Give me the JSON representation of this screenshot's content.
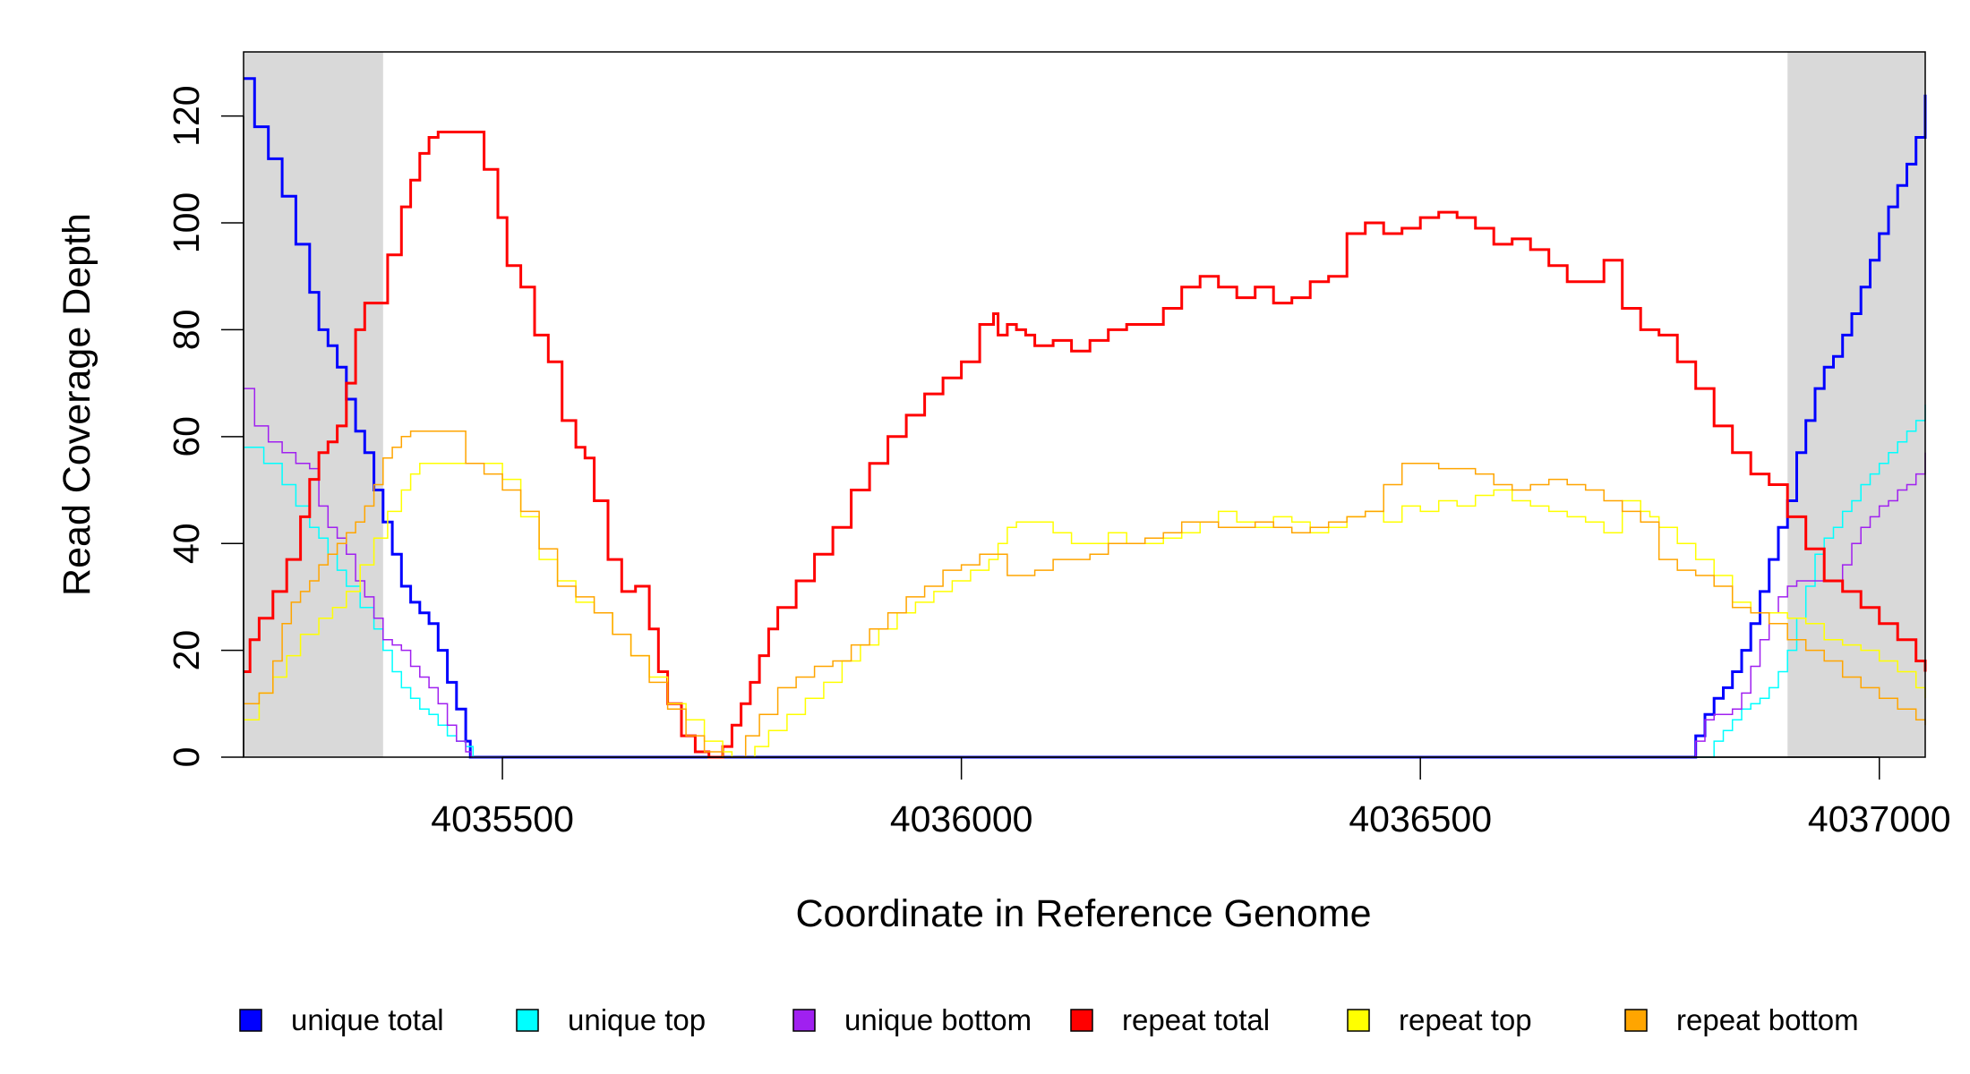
{
  "chart_data": {
    "type": "line",
    "title": "",
    "xlabel": "Coordinate in Reference Genome",
    "ylabel": "Read Coverage Depth",
    "xlim": [
      4035218,
      4037050
    ],
    "ylim": [
      0,
      132
    ],
    "x_ticks": [
      4035500,
      4036000,
      4036500,
      4037000
    ],
    "x_tick_labels": [
      "4035500",
      "4036000",
      "4036500",
      "4037000"
    ],
    "y_ticks": [
      0,
      20,
      40,
      60,
      80,
      100,
      120
    ],
    "y_tick_labels": [
      "0",
      "20",
      "40",
      "60",
      "80",
      "100",
      "120"
    ],
    "grid": false,
    "legend_position": "bottom",
    "shaded_regions": [
      [
        4035218,
        4035370
      ],
      [
        4036900,
        4037050
      ]
    ],
    "shade_color": "#d9d9d9",
    "series": [
      {
        "name": "unique total",
        "color": "#0000ff",
        "width": 3,
        "x": [
          4035218,
          4035230,
          4035245,
          4035260,
          4035275,
          4035290,
          4035300,
          4035310,
          4035320,
          4035330,
          4035340,
          4035350,
          4035360,
          4035370,
          4035380,
          4035390,
          4035400,
          4035410,
          4035420,
          4035430,
          4035440,
          4035450,
          4035460,
          4035465,
          4036795,
          4036800,
          4036810,
          4036820,
          4036830,
          4036840,
          4036850,
          4036860,
          4036870,
          4036880,
          4036890,
          4036900,
          4036910,
          4036920,
          4036930,
          4036940,
          4036950,
          4036960,
          4036970,
          4036980,
          4036990,
          4037000,
          4037010,
          4037020,
          4037030,
          4037040,
          4037050
        ],
        "y": [
          127,
          118,
          112,
          105,
          96,
          87,
          80,
          77,
          73,
          67,
          61,
          57,
          50,
          44,
          38,
          32,
          29,
          27,
          25,
          20,
          14,
          9,
          3,
          0,
          0,
          4,
          8,
          11,
          13,
          16,
          20,
          25,
          31,
          37,
          43,
          48,
          57,
          63,
          69,
          73,
          75,
          79,
          83,
          88,
          93,
          98,
          103,
          107,
          111,
          116,
          124
        ]
      },
      {
        "name": "unique top",
        "color": "#00ffff",
        "width": 1.5,
        "x": [
          4035218,
          4035240,
          4035260,
          4035275,
          4035290,
          4035300,
          4035310,
          4035320,
          4035330,
          4035345,
          4035360,
          4035370,
          4035380,
          4035390,
          4035400,
          4035410,
          4035420,
          4035430,
          4035440,
          4035450,
          4035460,
          4035468,
          4036812,
          4036820,
          4036830,
          4036840,
          4036850,
          4036860,
          4036870,
          4036880,
          4036890,
          4036900,
          4036910,
          4036920,
          4036930,
          4036940,
          4036950,
          4036960,
          4036970,
          4036980,
          4036990,
          4037000,
          4037010,
          4037020,
          4037030,
          4037040,
          4037050
        ],
        "y": [
          58,
          55,
          51,
          47,
          43,
          41,
          38,
          35,
          32,
          28,
          24,
          20,
          16,
          13,
          11,
          9,
          8,
          6,
          4,
          3,
          2,
          0,
          0,
          3,
          5,
          7,
          9,
          10,
          11,
          13,
          16,
          20,
          26,
          32,
          38,
          41,
          43,
          46,
          48,
          51,
          53,
          55,
          57,
          59,
          61,
          63,
          66
        ]
      },
      {
        "name": "unique bottom",
        "color": "#a020f0",
        "width": 1.5,
        "x": [
          4035218,
          4035230,
          4035245,
          4035260,
          4035275,
          4035290,
          4035300,
          4035310,
          4035320,
          4035330,
          4035340,
          4035350,
          4035360,
          4035370,
          4035380,
          4035390,
          4035400,
          4035410,
          4035420,
          4035430,
          4035440,
          4035450,
          4035460,
          4035466,
          4036795,
          4036800,
          4036810,
          4036820,
          4036830,
          4036840,
          4036850,
          4036860,
          4036870,
          4036880,
          4036890,
          4036900,
          4036910,
          4036920,
          4036930,
          4036940,
          4036950,
          4036960,
          4036970,
          4036980,
          4036990,
          4037000,
          4037010,
          4037020,
          4037030,
          4037040,
          4037050
        ],
        "y": [
          69,
          62,
          59,
          57,
          55,
          54,
          47,
          43,
          41,
          38,
          33,
          30,
          26,
          22,
          21,
          20,
          17,
          15,
          13,
          10,
          6,
          3,
          1,
          0,
          0,
          3,
          7,
          8,
          8,
          9,
          12,
          17,
          22,
          27,
          30,
          32,
          33,
          33,
          33,
          33,
          33,
          36,
          40,
          43,
          45,
          47,
          48,
          50,
          51,
          53,
          57
        ]
      },
      {
        "name": "repeat total",
        "color": "#ff0000",
        "width": 3,
        "x": [
          4035218,
          4035225,
          4035235,
          4035250,
          4035265,
          4035280,
          4035290,
          4035300,
          4035310,
          4035320,
          4035330,
          4035340,
          4035350,
          4035360,
          4035375,
          4035390,
          4035400,
          4035410,
          4035420,
          4035430,
          4035440,
          4035450,
          4035465,
          4035480,
          4035495,
          4035505,
          4035520,
          4035535,
          4035550,
          4035565,
          4035580,
          4035590,
          4035600,
          4035615,
          4035630,
          4035645,
          4035660,
          4035670,
          4035680,
          4035695,
          4035710,
          4035725,
          4035740,
          4035750,
          4035760,
          4035770,
          4035780,
          4035790,
          4035800,
          4035820,
          4035840,
          4035860,
          4035880,
          4035900,
          4035920,
          4035940,
          4035960,
          4035980,
          4036000,
          4036020,
          4036035,
          4036040,
          4036050,
          4036060,
          4036070,
          4036080,
          4036100,
          4036120,
          4036140,
          4036160,
          4036180,
          4036200,
          4036220,
          4036240,
          4036260,
          4036280,
          4036300,
          4036320,
          4036340,
          4036360,
          4036380,
          4036400,
          4036420,
          4036440,
          4036460,
          4036480,
          4036500,
          4036520,
          4036540,
          4036560,
          4036580,
          4036600,
          4036620,
          4036640,
          4036660,
          4036680,
          4036700,
          4036720,
          4036740,
          4036760,
          4036780,
          4036800,
          4036820,
          4036840,
          4036860,
          4036880,
          4036900,
          4036920,
          4036940,
          4036960,
          4036980,
          4037000,
          4037020,
          4037040,
          4037050
        ],
        "y": [
          16,
          22,
          26,
          31,
          37,
          45,
          52,
          57,
          59,
          62,
          70,
          80,
          85,
          85,
          94,
          103,
          108,
          113,
          116,
          117,
          117,
          117,
          117,
          110,
          101,
          92,
          88,
          79,
          74,
          63,
          58,
          56,
          48,
          37,
          31,
          32,
          24,
          16,
          10,
          4,
          1,
          0,
          2,
          6,
          10,
          14,
          19,
          24,
          28,
          33,
          38,
          43,
          50,
          55,
          60,
          64,
          68,
          71,
          74,
          81,
          83,
          79,
          81,
          80,
          79,
          77,
          78,
          76,
          78,
          80,
          81,
          81,
          84,
          88,
          90,
          88,
          86,
          88,
          85,
          86,
          89,
          90,
          98,
          100,
          98,
          99,
          101,
          102,
          101,
          99,
          96,
          97,
          95,
          92,
          89,
          89,
          93,
          84,
          80,
          79,
          74,
          69,
          62,
          57,
          53,
          51,
          45,
          39,
          33,
          31,
          28,
          25,
          22,
          18,
          16
        ]
      },
      {
        "name": "repeat top",
        "color": "#ffff00",
        "width": 1.5,
        "x": [
          4035218,
          4035235,
          4035250,
          4035265,
          4035280,
          4035300,
          4035315,
          4035330,
          4035345,
          4035360,
          4035375,
          4035390,
          4035400,
          4035410,
          4035420,
          4035440,
          4035460,
          4035480,
          4035500,
          4035520,
          4035540,
          4035560,
          4035580,
          4035600,
          4035620,
          4035640,
          4035660,
          4035680,
          4035700,
          4035720,
          4035740,
          4035750,
          4035760,
          4035775,
          4035790,
          4035810,
          4035830,
          4035850,
          4035870,
          4035890,
          4035910,
          4035930,
          4035950,
          4035970,
          4035990,
          4036010,
          4036030,
          4036040,
          4036050,
          4036060,
          4036080,
          4036100,
          4036120,
          4036140,
          4036160,
          4036180,
          4036200,
          4036220,
          4036240,
          4036260,
          4036280,
          4036300,
          4036320,
          4036340,
          4036360,
          4036380,
          4036400,
          4036420,
          4036440,
          4036460,
          4036480,
          4036500,
          4036520,
          4036540,
          4036560,
          4036580,
          4036600,
          4036620,
          4036640,
          4036660,
          4036680,
          4036700,
          4036720,
          4036740,
          4036750,
          4036760,
          4036780,
          4036800,
          4036820,
          4036840,
          4036860,
          4036880,
          4036900,
          4036920,
          4036940,
          4036960,
          4036980,
          4037000,
          4037020,
          4037040,
          4037050
        ],
        "y": [
          7,
          12,
          15,
          19,
          23,
          26,
          28,
          31,
          36,
          41,
          46,
          50,
          53,
          55,
          55,
          55,
          55,
          55,
          52,
          45,
          37,
          33,
          29,
          27,
          23,
          19,
          15,
          10,
          7,
          3,
          1,
          0,
          0,
          2,
          5,
          8,
          11,
          14,
          18,
          21,
          24,
          27,
          29,
          31,
          33,
          35,
          37,
          40,
          43,
          44,
          44,
          42,
          40,
          40,
          42,
          40,
          40,
          41,
          42,
          44,
          46,
          44,
          43,
          45,
          44,
          42,
          43,
          45,
          46,
          44,
          47,
          46,
          48,
          47,
          49,
          50,
          48,
          47,
          46,
          45,
          44,
          42,
          48,
          46,
          45,
          43,
          40,
          37,
          34,
          29,
          27,
          27,
          26,
          25,
          22,
          21,
          20,
          18,
          16,
          13,
          11
        ]
      },
      {
        "name": "repeat bottom",
        "color": "#ffa500",
        "width": 1.5,
        "x": [
          4035218,
          4035235,
          4035250,
          4035260,
          4035270,
          4035280,
          4035290,
          4035300,
          4035310,
          4035320,
          4035330,
          4035340,
          4035350,
          4035360,
          4035370,
          4035380,
          4035390,
          4035400,
          4035410,
          4035420,
          4035440,
          4035460,
          4035480,
          4035500,
          4035520,
          4035540,
          4035560,
          4035580,
          4035600,
          4035620,
          4035640,
          4035660,
          4035680,
          4035700,
          4035720,
          4035740,
          4035750,
          4035765,
          4035780,
          4035800,
          4035820,
          4035840,
          4035860,
          4035880,
          4035900,
          4035920,
          4035940,
          4035960,
          4035980,
          4036000,
          4036020,
          4036040,
          4036050,
          4036060,
          4036080,
          4036100,
          4036120,
          4036140,
          4036160,
          4036180,
          4036200,
          4036220,
          4036240,
          4036260,
          4036280,
          4036300,
          4036320,
          4036340,
          4036360,
          4036380,
          4036400,
          4036420,
          4036440,
          4036460,
          4036480,
          4036500,
          4036520,
          4036540,
          4036560,
          4036580,
          4036600,
          4036620,
          4036640,
          4036660,
          4036680,
          4036700,
          4036720,
          4036740,
          4036760,
          4036780,
          4036800,
          4036820,
          4036840,
          4036860,
          4036880,
          4036900,
          4036920,
          4036940,
          4036960,
          4036980,
          4037000,
          4037020,
          4037040,
          4037050
        ],
        "y": [
          10,
          12,
          18,
          25,
          29,
          31,
          33,
          36,
          38,
          40,
          42,
          44,
          47,
          51,
          56,
          58,
          60,
          61,
          61,
          61,
          61,
          55,
          53,
          50,
          46,
          39,
          32,
          30,
          27,
          23,
          19,
          14,
          9,
          4,
          1,
          0,
          0,
          4,
          8,
          13,
          15,
          17,
          18,
          21,
          24,
          27,
          30,
          32,
          35,
          36,
          38,
          38,
          34,
          34,
          35,
          37,
          37,
          38,
          40,
          40,
          41,
          42,
          44,
          44,
          43,
          43,
          44,
          43,
          42,
          43,
          44,
          45,
          46,
          51,
          55,
          55,
          54,
          54,
          53,
          51,
          50,
          51,
          52,
          51,
          50,
          48,
          46,
          44,
          37,
          35,
          34,
          32,
          28,
          27,
          25,
          22,
          20,
          18,
          15,
          13,
          11,
          9,
          7,
          6
        ]
      }
    ]
  }
}
